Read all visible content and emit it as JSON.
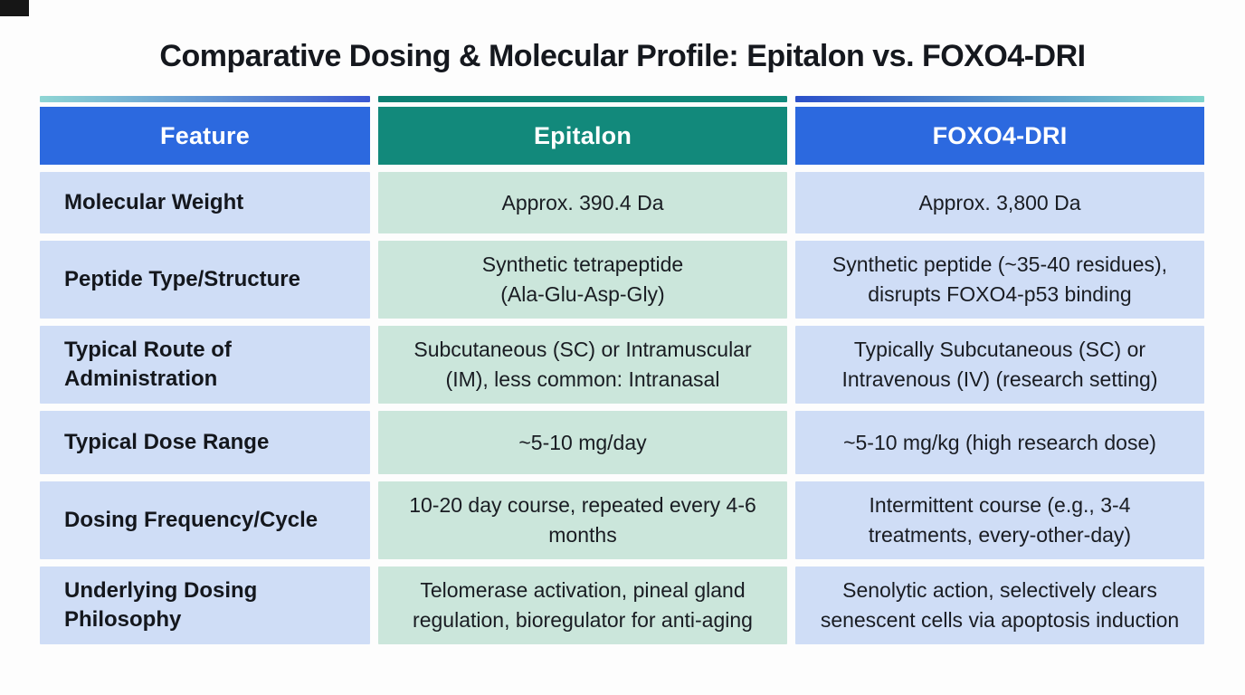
{
  "chart_data": {
    "type": "table",
    "title": "Comparative Dosing & Molecular Profile: Epitalon vs. FOXO4-DRI",
    "columns": [
      "Feature",
      "Epitalon",
      "FOXO4-DRI"
    ],
    "rows": [
      {
        "feature": "Molecular Weight",
        "epitalon": "Approx. 390.4 Da",
        "foxo4": "Approx. 3,800 Da"
      },
      {
        "feature": "Peptide Type/Structure",
        "epitalon": "Synthetic tetrapeptide\n(Ala-Glu-Asp-Gly)",
        "foxo4": "Synthetic peptide (~35-40 residues),\ndisrupts FOXO4-p53 binding"
      },
      {
        "feature": "Typical Route of\nAdministration",
        "epitalon": "Subcutaneous (SC) or Intramuscular\n(IM), less common: Intranasal",
        "foxo4": "Typically Subcutaneous (SC) or\nIntravenous (IV) (research setting)"
      },
      {
        "feature": "Typical Dose Range",
        "epitalon": "~5-10 mg/day",
        "foxo4": "~5-10 mg/kg (high research dose)"
      },
      {
        "feature": "Dosing Frequency/Cycle",
        "epitalon": "10-20 day course, repeated every 4-6\nmonths",
        "foxo4": "Intermittent course (e.g., 3-4\ntreatments, every-other-day)"
      },
      {
        "feature": "Underlying Dosing\nPhilosophy",
        "epitalon": "Telomerase activation, pineal gland\nregulation, bioregulator for anti-aging",
        "foxo4": "Senolytic action, selectively clears\nsenescent cells via apoptosis induction"
      }
    ],
    "layout": {
      "legend": "none",
      "grid": "off",
      "header_style": "colored header row with per-column accent bars above"
    }
  },
  "colors": {
    "header_blue": "#2c69df",
    "header_teal": "#12897b",
    "cell_light_blue": "#cfddf6",
    "cell_light_teal": "#cbe6db",
    "accent_gradient_feature": [
      "#8fd6d4",
      "#3a59d3"
    ],
    "accent_teal": "#0e8376",
    "accent_gradient_foxo4": [
      "#2b50ca",
      "#7fd4cc"
    ],
    "title_text": "#15181e",
    "header_text": "#ffffff",
    "background": "#fdfdfd"
  }
}
